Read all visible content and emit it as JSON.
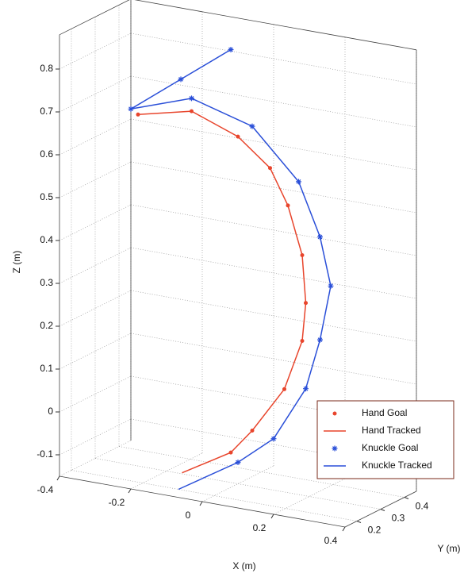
{
  "chart_data": {
    "type": "scatter3d",
    "xlabel": "X (m)",
    "ylabel": "Y (m)",
    "zlabel": "Z (m)",
    "xlim": [
      -0.4,
      0.4
    ],
    "ylim": [
      0.15,
      0.45
    ],
    "zlim": [
      -0.15,
      0.88
    ],
    "xticks": [
      -0.4,
      -0.2,
      0,
      0.2,
      0.4
    ],
    "yticks": [
      0.2,
      0.3,
      0.4
    ],
    "zticks": [
      -0.1,
      0,
      0.1,
      0.2,
      0.3,
      0.4,
      0.5,
      0.6,
      0.7,
      0.8
    ],
    "grid": true,
    "legend": "lower right",
    "series": [
      {
        "name": "Hand Goal",
        "marker": "dot",
        "color": "#e8452c",
        "x": [
          -0.28,
          -0.13,
          0,
          0.09,
          0.14,
          0.18,
          0.19,
          0.18,
          0.13,
          0.04,
          -0.02
        ],
        "y": [
          0.3,
          0.3,
          0.3,
          0.3,
          0.3,
          0.3,
          0.3,
          0.3,
          0.3,
          0.3,
          0.3
        ],
        "z": [
          0.67,
          0.7,
          0.66,
          0.6,
          0.52,
          0.41,
          0.3,
          0.21,
          0.09,
          -0.02,
          -0.08
        ]
      },
      {
        "name": "Hand Tracked",
        "marker": "line",
        "color": "#e8452c",
        "x": [
          -0.28,
          -0.13,
          0,
          0.09,
          0.14,
          0.18,
          0.19,
          0.18,
          0.13,
          0.04,
          -0.02,
          -0.09
        ],
        "y": [
          0.3,
          0.3,
          0.3,
          0.3,
          0.3,
          0.3,
          0.3,
          0.3,
          0.3,
          0.3,
          0.3,
          0.2
        ],
        "z": [
          0.67,
          0.7,
          0.66,
          0.6,
          0.52,
          0.41,
          0.3,
          0.21,
          0.09,
          -0.02,
          -0.08,
          -0.11
        ]
      },
      {
        "name": "Knuckle Goal",
        "marker": "star",
        "color": "#2a4fd8",
        "x": [
          -0.02,
          -0.16,
          -0.3,
          -0.13,
          0.04,
          0.17,
          0.23,
          0.26,
          0.23,
          0.19,
          0.1,
          0
        ],
        "y": [
          0.3,
          0.3,
          0.3,
          0.3,
          0.3,
          0.3,
          0.3,
          0.3,
          0.3,
          0.3,
          0.3,
          0.3
        ],
        "z": [
          0.86,
          0.77,
          0.68,
          0.73,
          0.69,
          0.58,
          0.46,
          0.35,
          0.22,
          0.1,
          -0.03,
          -0.1
        ]
      },
      {
        "name": "Knuckle Tracked",
        "marker": "line",
        "color": "#2a4fd8",
        "x": [
          -0.02,
          -0.16,
          -0.3,
          -0.13,
          0.04,
          0.17,
          0.23,
          0.26,
          0.23,
          0.19,
          0.1,
          0,
          -0.1
        ],
        "y": [
          0.3,
          0.3,
          0.3,
          0.3,
          0.3,
          0.3,
          0.3,
          0.3,
          0.3,
          0.3,
          0.3,
          0.3,
          0.2
        ],
        "z": [
          0.86,
          0.77,
          0.68,
          0.73,
          0.69,
          0.58,
          0.46,
          0.35,
          0.22,
          0.1,
          -0.03,
          -0.1,
          -0.15
        ]
      }
    ]
  }
}
